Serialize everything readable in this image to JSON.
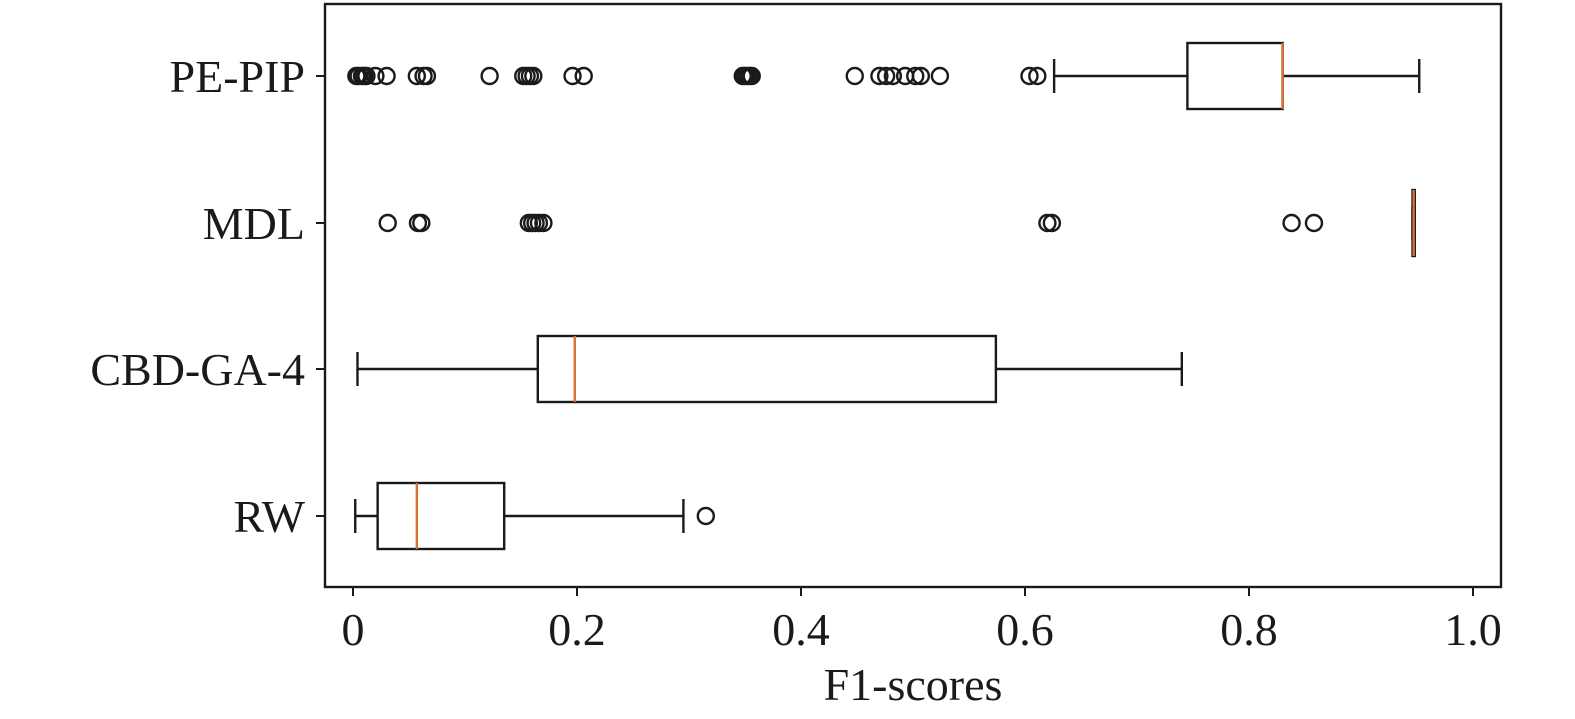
{
  "chart_data": {
    "type": "boxplot",
    "orientation": "horizontal",
    "title": "",
    "xlabel": "F1-scores",
    "ylabel": "",
    "xlim": [
      -0.025,
      1.025
    ],
    "xticks": [
      0,
      0.2,
      0.4,
      0.6,
      0.8,
      1.0
    ],
    "xtick_labels": [
      "0",
      "0.2",
      "0.4",
      "0.6",
      "0.8",
      "1.0"
    ],
    "grid": false,
    "colors": {
      "median": "#d9702e",
      "box": "#1a1a1a"
    },
    "categories": [
      "PE-PIP",
      "MDL",
      "CBD-GA-4",
      "RW"
    ],
    "series": [
      {
        "name": "PE-PIP",
        "whisker_low": 0.626,
        "q1": 0.745,
        "median": 0.83,
        "q3": 0.83,
        "whisker_high": 0.952,
        "outliers": [
          0.003,
          0.005,
          0.008,
          0.01,
          0.012,
          0.02,
          0.03,
          0.057,
          0.063,
          0.066,
          0.122,
          0.152,
          0.155,
          0.158,
          0.161,
          0.196,
          0.206,
          0.348,
          0.35,
          0.352,
          0.354,
          0.356,
          0.448,
          0.47,
          0.476,
          0.482,
          0.493,
          0.502,
          0.507,
          0.524,
          0.604,
          0.611
        ]
      },
      {
        "name": "MDL",
        "whisker_low": 0.946,
        "q1": 0.946,
        "median": 0.947,
        "q3": 0.948,
        "whisker_high": 0.948,
        "outliers": [
          0.031,
          0.058,
          0.061,
          0.157,
          0.16,
          0.163,
          0.166,
          0.17,
          0.62,
          0.624,
          0.838,
          0.858
        ]
      },
      {
        "name": "CBD-GA-4",
        "whisker_low": 0.004,
        "q1": 0.165,
        "median": 0.198,
        "q3": 0.574,
        "whisker_high": 0.74,
        "outliers": []
      },
      {
        "name": "RW",
        "whisker_low": 0.002,
        "q1": 0.022,
        "median": 0.057,
        "q3": 0.135,
        "whisker_high": 0.295,
        "outliers": [
          0.315
        ]
      }
    ]
  }
}
